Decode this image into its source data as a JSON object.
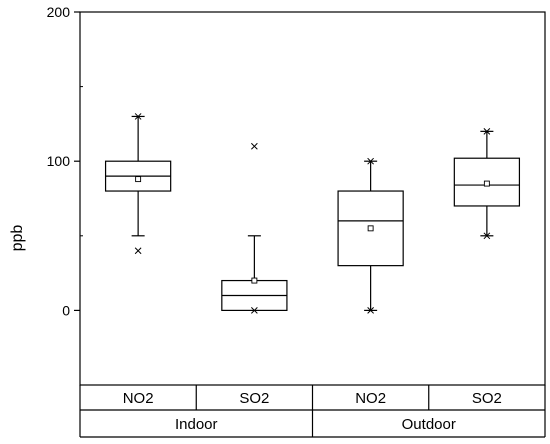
{
  "chart_data": {
    "type": "boxplot",
    "ylabel": "ppb",
    "ylim": [
      -50,
      200
    ],
    "yticks": [
      0,
      100,
      200
    ],
    "y_tick_labels": [
      "0",
      "100",
      "200"
    ],
    "grid": false,
    "legend": "none",
    "colors": {
      "stroke": "#000000",
      "background": "#ffffff"
    },
    "groups": [
      {
        "label": "Indoor",
        "categories": [
          "NO2",
          "SO2"
        ]
      },
      {
        "label": "Outdoor",
        "categories": [
          "NO2",
          "SO2"
        ]
      }
    ],
    "boxes": [
      {
        "category": "NO2",
        "group": "Indoor",
        "whisker_low": 50,
        "q1": 80,
        "median": 90,
        "q3": 100,
        "whisker_high": 130,
        "mean": 88,
        "min_marker": 40,
        "max_marker": 130
      },
      {
        "category": "SO2",
        "group": "Indoor",
        "whisker_low": 0,
        "q1": 0,
        "median": 10,
        "q3": 20,
        "whisker_high": 50,
        "mean": 20,
        "min_marker": 0,
        "max_marker": 110
      },
      {
        "category": "NO2",
        "group": "Outdoor",
        "whisker_low": 0,
        "q1": 30,
        "median": 60,
        "q3": 80,
        "whisker_high": 100,
        "mean": 55,
        "min_marker": 0,
        "max_marker": 100
      },
      {
        "category": "SO2",
        "group": "Outdoor",
        "whisker_low": 50,
        "q1": 70,
        "median": 84,
        "q3": 102,
        "whisker_high": 120,
        "mean": 85,
        "min_marker": 50,
        "max_marker": 120
      }
    ]
  }
}
